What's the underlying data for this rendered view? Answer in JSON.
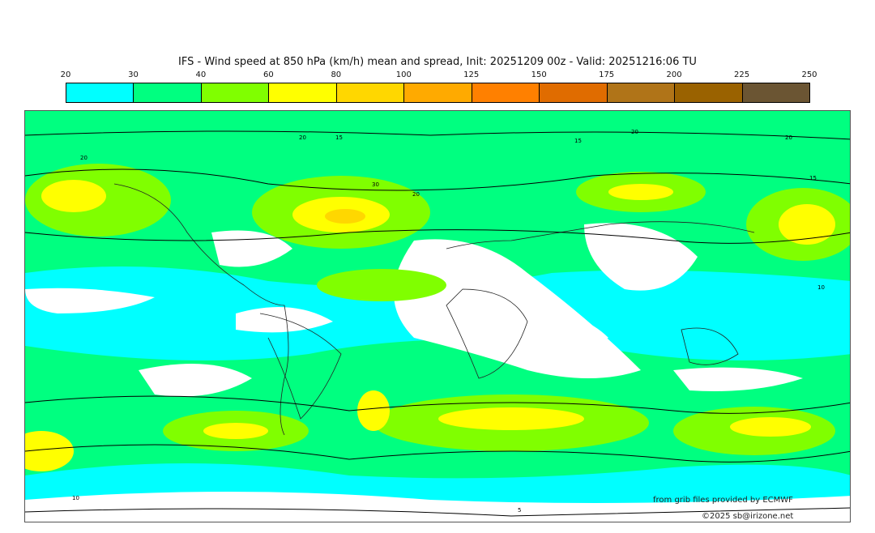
{
  "title": "IFS - Wind speed at 850 hPa (km/h) mean and spread, Init: 20251209 00z - Valid: 20251216:06 TU",
  "colorbar": {
    "ticks": [
      "20",
      "30",
      "40",
      "60",
      "80",
      "100",
      "125",
      "150",
      "175",
      "200",
      "225",
      "250"
    ],
    "colors": [
      "#00ffff",
      "#00ff80",
      "#80ff00",
      "#ffff00",
      "#ffd700",
      "#ffaa00",
      "#ff8000",
      "#e06c00",
      "#b07418",
      "#9a6200",
      "#6b5533"
    ]
  },
  "contour_labels": [
    "20",
    "15",
    "20",
    "30",
    "20",
    "15",
    "20",
    "10",
    "20",
    "15",
    "10",
    "5"
  ],
  "credits": {
    "source": "from grib files provided by ECMWF",
    "copyright": "©2025 sb@irizone.net"
  }
}
